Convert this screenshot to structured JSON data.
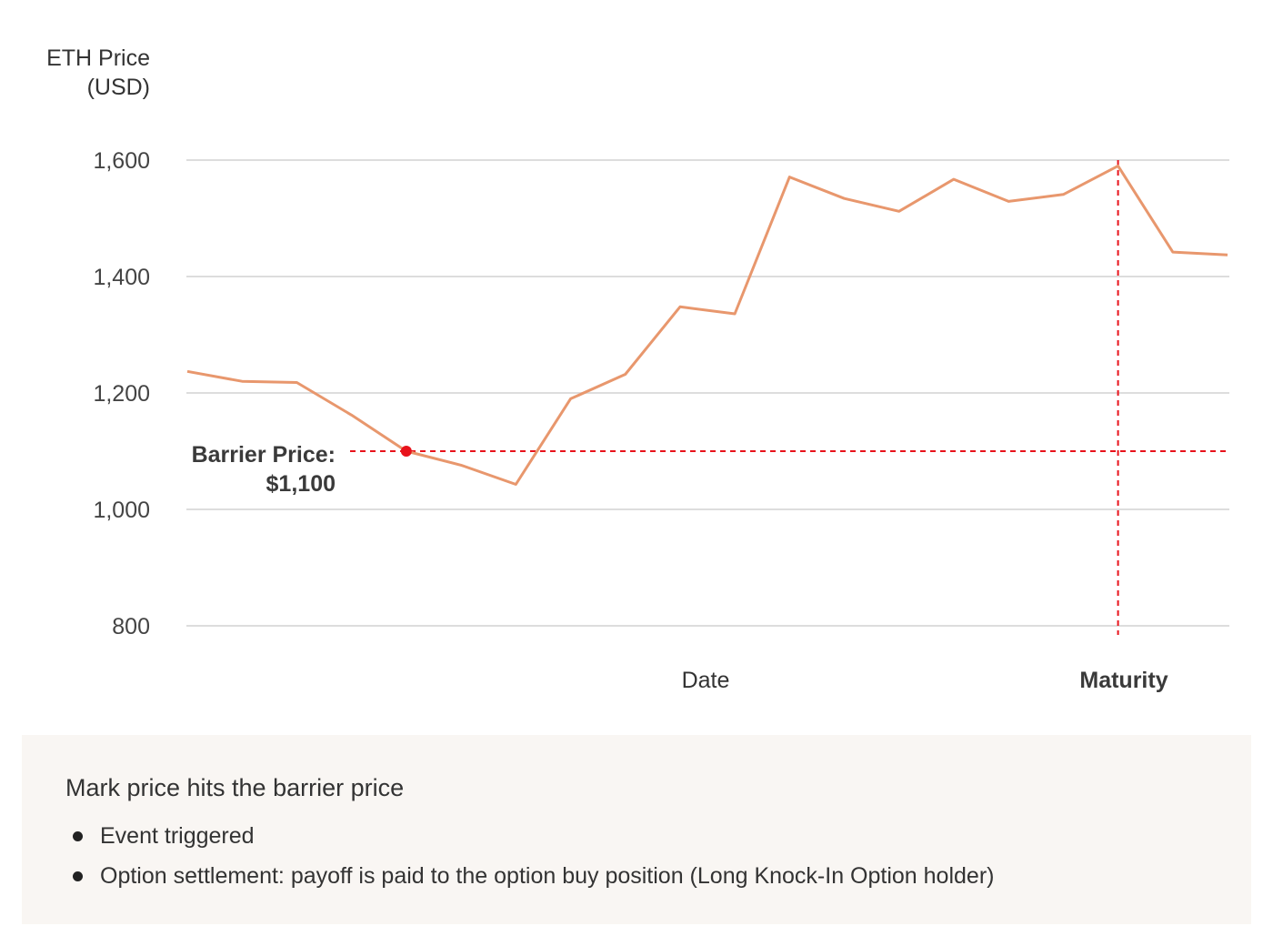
{
  "chart_data": {
    "type": "line",
    "ylabel_lines": [
      "ETH Price",
      "(USD)"
    ],
    "xlabel": "Date",
    "ylim": [
      800,
      1600
    ],
    "yticks": [
      1600,
      1400,
      1200,
      1000,
      800
    ],
    "ytick_labels": [
      "1,600",
      "1,400",
      "1,200",
      "1,000",
      "800"
    ],
    "grid": true,
    "line_color": "#e8976d",
    "series": [
      {
        "values": [
          1237,
          1220,
          1218,
          1162,
          1100,
          1076,
          1043,
          1190,
          1232,
          1348,
          1336,
          1571,
          1534,
          1512,
          1567,
          1529,
          1541,
          1590,
          1442,
          1437
        ]
      }
    ],
    "barrier": {
      "value": 1100,
      "label_lines": [
        "Barrier Price:",
        "$1,100"
      ],
      "color": "#e8121b"
    },
    "maturity": {
      "label": "Maturity",
      "color": "#e8121b"
    }
  },
  "info": {
    "title": "Mark price hits the barrier price",
    "bullets": [
      "Event triggered",
      "Option settlement: payoff is paid to the option buy position (Long Knock-In Option holder)"
    ]
  }
}
